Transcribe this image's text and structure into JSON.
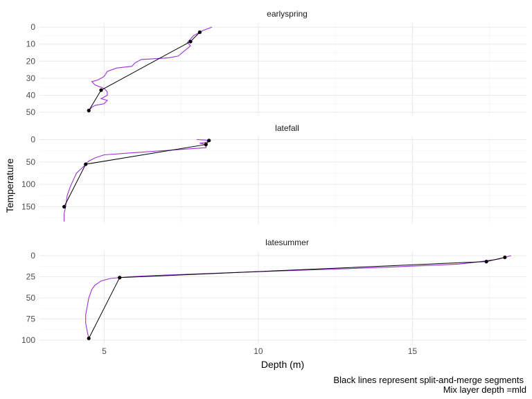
{
  "chart_data": {
    "type": "line",
    "title": "",
    "xlabel": "Depth (m)",
    "ylabel": "Temperature",
    "xlim": [
      2.9,
      18.7
    ],
    "x_ticks": [
      5,
      10,
      15
    ],
    "caption": [
      "Black lines represent split-and-merge segments",
      "Mix layer depth =mld"
    ],
    "colors": {
      "profile": "#9b30d9",
      "segments": "#000000",
      "grid": "#ebebeb",
      "strip_text": "#1a1a1a",
      "tick_text": "#4d4d4d"
    },
    "grid": true,
    "y_reversed": true,
    "panels": [
      {
        "name": "earlyspring",
        "ylim": [
          -2.5,
          52
        ],
        "y_ticks": [
          0,
          10,
          20,
          30,
          40,
          50
        ],
        "profile": [
          [
            8.5,
            0
          ],
          [
            8.2,
            2
          ],
          [
            8.1,
            3
          ],
          [
            7.9,
            5
          ],
          [
            7.8,
            7
          ],
          [
            7.7,
            9
          ],
          [
            7.8,
            11
          ],
          [
            7.6,
            14
          ],
          [
            7.4,
            17
          ],
          [
            7.1,
            18
          ],
          [
            6.2,
            19
          ],
          [
            6.0,
            21
          ],
          [
            5.9,
            23
          ],
          [
            5.4,
            24
          ],
          [
            5.1,
            26
          ],
          [
            5.0,
            29
          ],
          [
            4.8,
            31
          ],
          [
            4.6,
            32
          ],
          [
            4.7,
            34
          ],
          [
            5.0,
            36
          ],
          [
            5.1,
            38
          ],
          [
            5.1,
            40
          ],
          [
            4.9,
            42
          ],
          [
            5.1,
            43
          ],
          [
            5.0,
            45
          ],
          [
            4.7,
            46
          ],
          [
            4.6,
            47
          ],
          [
            4.5,
            49
          ]
        ],
        "segments": [
          [
            8.1,
            3
          ],
          [
            7.8,
            8.5
          ],
          [
            4.9,
            37
          ],
          [
            4.5,
            49
          ]
        ]
      },
      {
        "name": "latefall",
        "ylim": [
          -7,
          188
        ],
        "y_ticks": [
          0,
          50,
          100,
          150
        ],
        "profile": [
          [
            8.0,
            0
          ],
          [
            8.3,
            1
          ],
          [
            8.4,
            3
          ],
          [
            8.3,
            6
          ],
          [
            8.1,
            8
          ],
          [
            8.3,
            11
          ],
          [
            8.3,
            18
          ],
          [
            6.0,
            29
          ],
          [
            5.0,
            34
          ],
          [
            4.7,
            41
          ],
          [
            4.5,
            48
          ],
          [
            4.4,
            55
          ],
          [
            4.3,
            62
          ],
          [
            4.1,
            75
          ],
          [
            4.0,
            90
          ],
          [
            3.9,
            105
          ],
          [
            3.8,
            125
          ],
          [
            3.75,
            150
          ],
          [
            3.7,
            165
          ],
          [
            3.7,
            183
          ]
        ],
        "segments": [
          [
            8.4,
            2
          ],
          [
            8.3,
            11
          ],
          [
            4.4,
            55
          ],
          [
            3.7,
            150
          ]
        ]
      },
      {
        "name": "latesummer",
        "ylim": [
          -5,
          105
        ],
        "y_ticks": [
          0,
          25,
          50,
          75,
          100
        ],
        "profile": [
          [
            18.2,
            0
          ],
          [
            18.0,
            2
          ],
          [
            17.8,
            4
          ],
          [
            17.0,
            8
          ],
          [
            16.5,
            10
          ],
          [
            14.0,
            14
          ],
          [
            10.0,
            19
          ],
          [
            7.0,
            23
          ],
          [
            5.8,
            25
          ],
          [
            5.2,
            27
          ],
          [
            4.9,
            30
          ],
          [
            4.7,
            35
          ],
          [
            4.6,
            40
          ],
          [
            4.5,
            50
          ],
          [
            4.45,
            60
          ],
          [
            4.4,
            70
          ],
          [
            4.4,
            80
          ],
          [
            4.45,
            90
          ],
          [
            4.5,
            98
          ]
        ],
        "segments": [
          [
            18.0,
            2
          ],
          [
            17.4,
            7
          ],
          [
            5.5,
            26
          ],
          [
            4.5,
            98
          ]
        ]
      }
    ]
  }
}
